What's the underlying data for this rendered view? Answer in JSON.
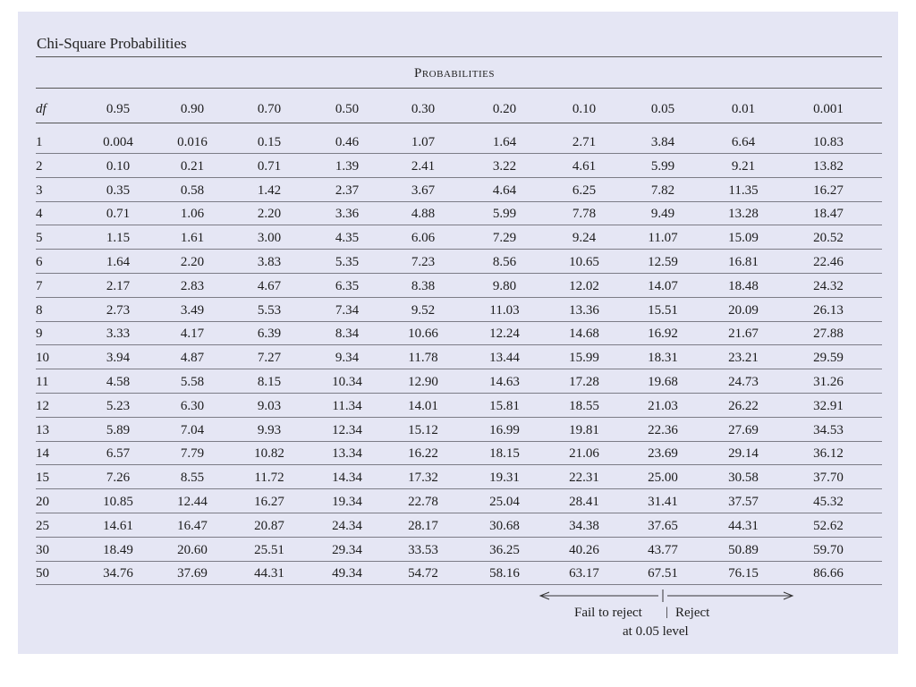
{
  "title": "Chi-Square Probabilities",
  "probabilities_heading": "Probabilities",
  "df_label": "df",
  "columns": [
    "0.95",
    "0.90",
    "0.70",
    "0.50",
    "0.30",
    "0.20",
    "0.10",
    "0.05",
    "0.01",
    "0.001"
  ],
  "rows": [
    {
      "df": "1",
      "values": [
        "0.004",
        "0.016",
        "0.15",
        "0.46",
        "1.07",
        "1.64",
        "2.71",
        "3.84",
        "6.64",
        "10.83"
      ]
    },
    {
      "df": "2",
      "values": [
        "0.10",
        "0.21",
        "0.71",
        "1.39",
        "2.41",
        "3.22",
        "4.61",
        "5.99",
        "9.21",
        "13.82"
      ]
    },
    {
      "df": "3",
      "values": [
        "0.35",
        "0.58",
        "1.42",
        "2.37",
        "3.67",
        "4.64",
        "6.25",
        "7.82",
        "11.35",
        "16.27"
      ]
    },
    {
      "df": "4",
      "values": [
        "0.71",
        "1.06",
        "2.20",
        "3.36",
        "4.88",
        "5.99",
        "7.78",
        "9.49",
        "13.28",
        "18.47"
      ]
    },
    {
      "df": "5",
      "values": [
        "1.15",
        "1.61",
        "3.00",
        "4.35",
        "6.06",
        "7.29",
        "9.24",
        "11.07",
        "15.09",
        "20.52"
      ]
    },
    {
      "df": "6",
      "values": [
        "1.64",
        "2.20",
        "3.83",
        "5.35",
        "7.23",
        "8.56",
        "10.65",
        "12.59",
        "16.81",
        "22.46"
      ]
    },
    {
      "df": "7",
      "values": [
        "2.17",
        "2.83",
        "4.67",
        "6.35",
        "8.38",
        "9.80",
        "12.02",
        "14.07",
        "18.48",
        "24.32"
      ]
    },
    {
      "df": "8",
      "values": [
        "2.73",
        "3.49",
        "5.53",
        "7.34",
        "9.52",
        "11.03",
        "13.36",
        "15.51",
        "20.09",
        "26.13"
      ]
    },
    {
      "df": "9",
      "values": [
        "3.33",
        "4.17",
        "6.39",
        "8.34",
        "10.66",
        "12.24",
        "14.68",
        "16.92",
        "21.67",
        "27.88"
      ]
    },
    {
      "df": "10",
      "values": [
        "3.94",
        "4.87",
        "7.27",
        "9.34",
        "11.78",
        "13.44",
        "15.99",
        "18.31",
        "23.21",
        "29.59"
      ]
    },
    {
      "df": "11",
      "values": [
        "4.58",
        "5.58",
        "8.15",
        "10.34",
        "12.90",
        "14.63",
        "17.28",
        "19.68",
        "24.73",
        "31.26"
      ]
    },
    {
      "df": "12",
      "values": [
        "5.23",
        "6.30",
        "9.03",
        "11.34",
        "14.01",
        "15.81",
        "18.55",
        "21.03",
        "26.22",
        "32.91"
      ]
    },
    {
      "df": "13",
      "values": [
        "5.89",
        "7.04",
        "9.93",
        "12.34",
        "15.12",
        "16.99",
        "19.81",
        "22.36",
        "27.69",
        "34.53"
      ]
    },
    {
      "df": "14",
      "values": [
        "6.57",
        "7.79",
        "10.82",
        "13.34",
        "16.22",
        "18.15",
        "21.06",
        "23.69",
        "29.14",
        "36.12"
      ]
    },
    {
      "df": "15",
      "values": [
        "7.26",
        "8.55",
        "11.72",
        "14.34",
        "17.32",
        "19.31",
        "22.31",
        "25.00",
        "30.58",
        "37.70"
      ]
    },
    {
      "df": "20",
      "values": [
        "10.85",
        "12.44",
        "16.27",
        "19.34",
        "22.78",
        "25.04",
        "28.41",
        "31.41",
        "37.57",
        "45.32"
      ]
    },
    {
      "df": "25",
      "values": [
        "14.61",
        "16.47",
        "20.87",
        "24.34",
        "28.17",
        "30.68",
        "34.38",
        "37.65",
        "44.31",
        "52.62"
      ]
    },
    {
      "df": "30",
      "values": [
        "18.49",
        "20.60",
        "25.51",
        "29.34",
        "33.53",
        "36.25",
        "40.26",
        "43.77",
        "50.89",
        "59.70"
      ]
    },
    {
      "df": "50",
      "values": [
        "34.76",
        "37.69",
        "44.31",
        "49.34",
        "54.72",
        "58.16",
        "63.17",
        "67.51",
        "76.15",
        "86.66"
      ]
    }
  ],
  "decision": {
    "fail_label": "Fail to reject",
    "separator": "|",
    "reject_label": "Reject",
    "level_label": "at 0.05 level"
  }
}
